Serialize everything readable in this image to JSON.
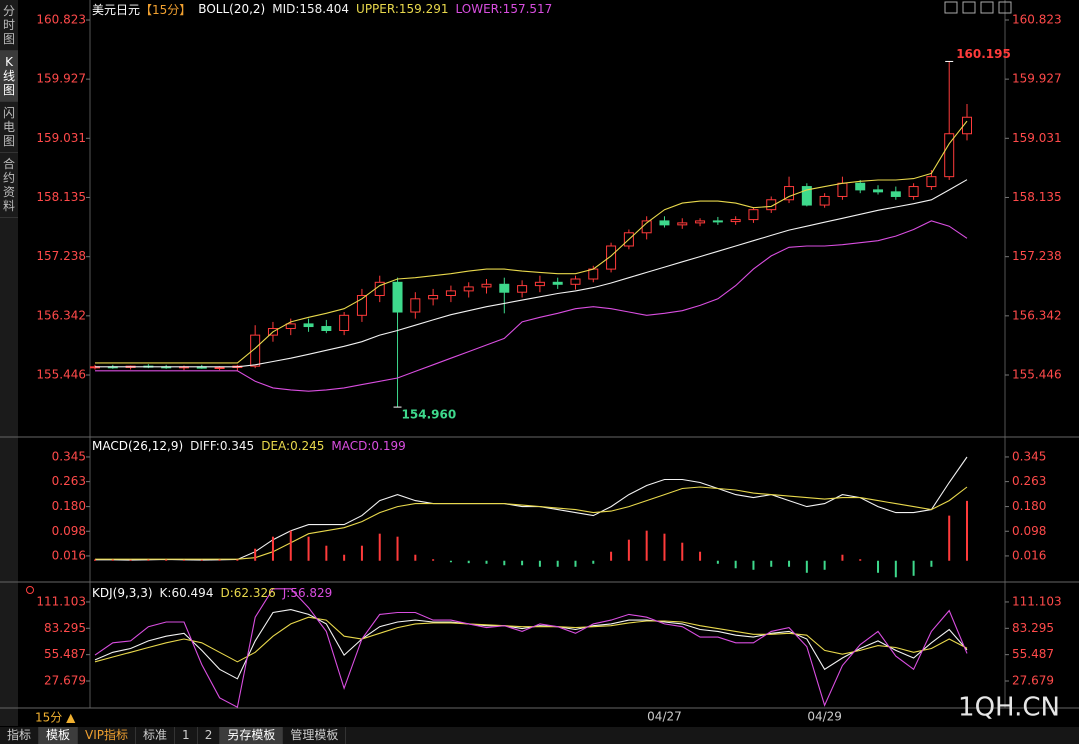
{
  "sidebar": [
    "分时图",
    "K线图",
    "闪电图",
    "合约资料"
  ],
  "chart_data": [
    {
      "type": "candlestick",
      "symbol": "美元日元",
      "period": "【15分】",
      "indicator": "BOLL(20,2)",
      "open": [
        155.56,
        155.57,
        155.56,
        155.58,
        155.57,
        155.56,
        155.57,
        155.55,
        155.56,
        155.58,
        156.05,
        156.15,
        156.22,
        156.18,
        156.12,
        156.35,
        156.65,
        156.85,
        156.4,
        156.6,
        156.65,
        156.72,
        156.78,
        156.82,
        156.7,
        156.8,
        156.85,
        156.82,
        156.9,
        157.05,
        157.4,
        157.6,
        157.78,
        157.72,
        157.75,
        157.78,
        157.77,
        157.8,
        157.95,
        158.1,
        158.3,
        158.02,
        158.15,
        158.35,
        158.25,
        158.22,
        158.15,
        158.3,
        158.45,
        159.1
      ],
      "high": [
        155.6,
        155.6,
        155.59,
        155.61,
        155.6,
        155.59,
        155.6,
        155.58,
        155.6,
        156.2,
        156.25,
        156.3,
        156.3,
        156.28,
        156.4,
        156.75,
        156.95,
        156.92,
        156.7,
        156.75,
        156.8,
        156.85,
        156.9,
        156.92,
        156.88,
        156.95,
        156.92,
        156.95,
        157.1,
        157.45,
        157.65,
        157.85,
        157.85,
        157.82,
        157.82,
        157.84,
        157.85,
        157.98,
        158.15,
        158.45,
        158.35,
        158.2,
        158.45,
        158.4,
        158.32,
        158.3,
        158.35,
        158.55,
        160.195,
        159.55
      ],
      "low": [
        155.53,
        155.54,
        155.53,
        155.55,
        155.54,
        155.52,
        155.54,
        155.52,
        155.5,
        155.55,
        155.95,
        156.05,
        156.1,
        156.08,
        156.05,
        156.25,
        156.55,
        154.96,
        156.3,
        156.5,
        156.55,
        156.62,
        156.68,
        156.38,
        156.62,
        156.7,
        156.75,
        156.74,
        156.85,
        157.0,
        157.35,
        157.5,
        157.68,
        157.66,
        157.7,
        157.72,
        157.72,
        157.75,
        157.9,
        158.05,
        158.0,
        157.98,
        158.1,
        158.2,
        158.18,
        158.1,
        158.1,
        158.25,
        158.4,
        159.0
      ],
      "close": [
        155.57,
        155.56,
        155.58,
        155.57,
        155.56,
        155.57,
        155.55,
        155.56,
        155.58,
        156.05,
        156.15,
        156.22,
        156.18,
        156.12,
        156.35,
        156.65,
        156.85,
        156.4,
        156.6,
        156.65,
        156.72,
        156.78,
        156.82,
        156.7,
        156.8,
        156.85,
        156.82,
        156.9,
        157.05,
        157.4,
        157.6,
        157.78,
        157.72,
        157.75,
        157.78,
        157.77,
        157.8,
        157.95,
        158.1,
        158.3,
        158.02,
        158.15,
        158.35,
        158.25,
        158.22,
        158.15,
        158.3,
        158.45,
        159.1,
        159.35
      ],
      "series": [
        {
          "name": "MID:158.404",
          "color": "#f2f2f2",
          "values": [
            155.57,
            155.57,
            155.57,
            155.57,
            155.57,
            155.57,
            155.57,
            155.57,
            155.57,
            155.6,
            155.65,
            155.7,
            155.76,
            155.82,
            155.88,
            155.95,
            156.05,
            156.12,
            156.2,
            156.28,
            156.36,
            156.42,
            156.48,
            156.53,
            156.58,
            156.63,
            156.68,
            156.72,
            156.77,
            156.84,
            156.92,
            157.0,
            157.08,
            157.16,
            157.24,
            157.32,
            157.4,
            157.48,
            157.56,
            157.64,
            157.7,
            157.76,
            157.82,
            157.88,
            157.94,
            157.99,
            158.04,
            158.1,
            158.25,
            158.404
          ]
        },
        {
          "name": "UPPER:159.291",
          "color": "#e8d84c",
          "values": [
            155.63,
            155.63,
            155.63,
            155.63,
            155.63,
            155.63,
            155.63,
            155.63,
            155.63,
            155.85,
            156.1,
            156.25,
            156.32,
            156.38,
            156.45,
            156.6,
            156.8,
            156.9,
            156.92,
            156.95,
            156.98,
            157.02,
            157.05,
            157.05,
            157.02,
            157.0,
            156.98,
            156.98,
            157.05,
            157.25,
            157.5,
            157.75,
            157.95,
            158.05,
            158.08,
            158.08,
            158.05,
            157.98,
            158.0,
            158.15,
            158.25,
            158.3,
            158.35,
            158.38,
            158.4,
            158.4,
            158.42,
            158.5,
            158.95,
            159.291
          ]
        },
        {
          "name": "LOWER:157.517",
          "color": "#d94ee0",
          "values": [
            155.51,
            155.51,
            155.51,
            155.51,
            155.51,
            155.51,
            155.51,
            155.51,
            155.51,
            155.35,
            155.25,
            155.22,
            155.2,
            155.22,
            155.25,
            155.3,
            155.35,
            155.4,
            155.5,
            155.6,
            155.7,
            155.8,
            155.9,
            156.0,
            156.25,
            156.32,
            156.38,
            156.45,
            156.48,
            156.45,
            156.4,
            156.35,
            156.38,
            156.42,
            156.5,
            156.6,
            156.8,
            157.05,
            157.25,
            157.38,
            157.4,
            157.4,
            157.42,
            157.45,
            157.48,
            157.55,
            157.65,
            157.78,
            157.7,
            157.517
          ]
        }
      ],
      "up_color": "#ff3b3b",
      "down_color": "#3ed98c",
      "max_label": "160.195",
      "min_label": "154.960",
      "ylim": [
        154.507,
        161.05
      ],
      "yticks": [
        160.823,
        159.927,
        159.031,
        158.135,
        157.238,
        156.342,
        155.446
      ]
    },
    {
      "type": "macd",
      "title": "MACD(26,12,9)",
      "series": [
        {
          "name": "DIFF:0.345",
          "color": "#f2f2f2",
          "values": [
            0.003,
            0.003,
            0.002,
            0.003,
            0.004,
            0.003,
            0.002,
            0.003,
            0.004,
            0.03,
            0.07,
            0.1,
            0.12,
            0.12,
            0.12,
            0.15,
            0.2,
            0.22,
            0.2,
            0.19,
            0.19,
            0.19,
            0.19,
            0.19,
            0.18,
            0.18,
            0.17,
            0.16,
            0.15,
            0.18,
            0.22,
            0.25,
            0.27,
            0.27,
            0.26,
            0.24,
            0.22,
            0.21,
            0.22,
            0.2,
            0.18,
            0.19,
            0.22,
            0.21,
            0.18,
            0.16,
            0.16,
            0.17,
            0.26,
            0.345
          ]
        },
        {
          "name": "DEA:0.245",
          "color": "#e8d84c",
          "values": [
            0.005,
            0.005,
            0.005,
            0.005,
            0.005,
            0.005,
            0.005,
            0.005,
            0.005,
            0.01,
            0.03,
            0.06,
            0.09,
            0.1,
            0.11,
            0.13,
            0.16,
            0.18,
            0.19,
            0.19,
            0.19,
            0.19,
            0.19,
            0.19,
            0.185,
            0.18,
            0.175,
            0.17,
            0.16,
            0.165,
            0.18,
            0.2,
            0.22,
            0.24,
            0.245,
            0.24,
            0.235,
            0.225,
            0.22,
            0.215,
            0.21,
            0.205,
            0.21,
            0.21,
            0.2,
            0.19,
            0.18,
            0.17,
            0.2,
            0.245
          ]
        },
        {
          "name": "MACD:0.199",
          "color": "#d94ee0",
          "style": "histogram",
          "values": [
            0.004,
            0.004,
            0.003,
            0.004,
            0.004,
            0.003,
            0.003,
            0.004,
            0.004,
            0.04,
            0.08,
            0.1,
            0.08,
            0.05,
            0.02,
            0.05,
            0.09,
            0.08,
            0.02,
            0.005,
            -0.005,
            -0.008,
            -0.01,
            -0.015,
            -0.015,
            -0.02,
            -0.02,
            -0.02,
            -0.01,
            0.03,
            0.07,
            0.1,
            0.09,
            0.06,
            0.03,
            -0.01,
            -0.025,
            -0.03,
            -0.02,
            -0.02,
            -0.04,
            -0.03,
            0.02,
            0.005,
            -0.04,
            -0.055,
            -0.05,
            -0.02,
            0.15,
            0.199
          ]
        }
      ],
      "up_color": "#ff3b3b",
      "down_color": "#3ed98c",
      "ylim": [
        -0.064,
        0.408
      ],
      "yticks": [
        0.345,
        0.263,
        {
          "value": 0.18,
          "label": "0.180"
        },
        0.098,
        0.016
      ]
    },
    {
      "type": "line",
      "title": "KDJ(9,3,3)",
      "categories": [
        null,
        null,
        null,
        null,
        null,
        null,
        null,
        null,
        null,
        null,
        null,
        null,
        null,
        null,
        null,
        null,
        null,
        null,
        null,
        null,
        null,
        null,
        null,
        null,
        null,
        null,
        null,
        null,
        null,
        null,
        null,
        null,
        "04/27",
        null,
        null,
        null,
        null,
        null,
        null,
        null,
        null,
        "04/29",
        null,
        null,
        null,
        null,
        null,
        null,
        null,
        null
      ],
      "series": [
        {
          "name": "K:60.494",
          "color": "#f2f2f2",
          "values": [
            50,
            58,
            62,
            70,
            75,
            78,
            60,
            40,
            30,
            70,
            100,
            103,
            98,
            88,
            55,
            72,
            85,
            90,
            92,
            90,
            90,
            88,
            86,
            86,
            83,
            86,
            85,
            82,
            86,
            88,
            92,
            92,
            90,
            88,
            82,
            80,
            76,
            74,
            78,
            80,
            72,
            40,
            52,
            62,
            70,
            60,
            52,
            68,
            82,
            60.494
          ]
        },
        {
          "name": "D:62.326",
          "color": "#e8d84c",
          "values": [
            48,
            53,
            58,
            63,
            68,
            72,
            68,
            58,
            48,
            58,
            75,
            88,
            95,
            92,
            75,
            72,
            78,
            84,
            88,
            89,
            89,
            88,
            87,
            86,
            85,
            85,
            85,
            84,
            85,
            86,
            89,
            91,
            91,
            90,
            86,
            83,
            80,
            77,
            77,
            78,
            76,
            60,
            56,
            60,
            65,
            63,
            58,
            62,
            72,
            62.326
          ]
        },
        {
          "name": "J:56.829",
          "color": "#d94ee0",
          "values": [
            55,
            68,
            70,
            85,
            90,
            90,
            45,
            10,
            0,
            95,
            125,
            125,
            105,
            80,
            20,
            72,
            98,
            100,
            100,
            92,
            92,
            88,
            84,
            86,
            80,
            88,
            85,
            78,
            88,
            92,
            98,
            95,
            88,
            85,
            74,
            74,
            68,
            68,
            80,
            84,
            64,
            2,
            44,
            66,
            80,
            54,
            40,
            80,
            102,
            56.829
          ]
        }
      ],
      "ylim": [
        -0.8,
        129
      ],
      "yticks": [
        111.103,
        83.295,
        55.487,
        27.679
      ]
    }
  ],
  "period_selector": "15分 ▲",
  "toolbar": [
    "指标",
    "模板",
    "VIP指标",
    "标准",
    "1",
    "2",
    "另存模板",
    "管理模板"
  ],
  "watermark": "1QH.CN"
}
